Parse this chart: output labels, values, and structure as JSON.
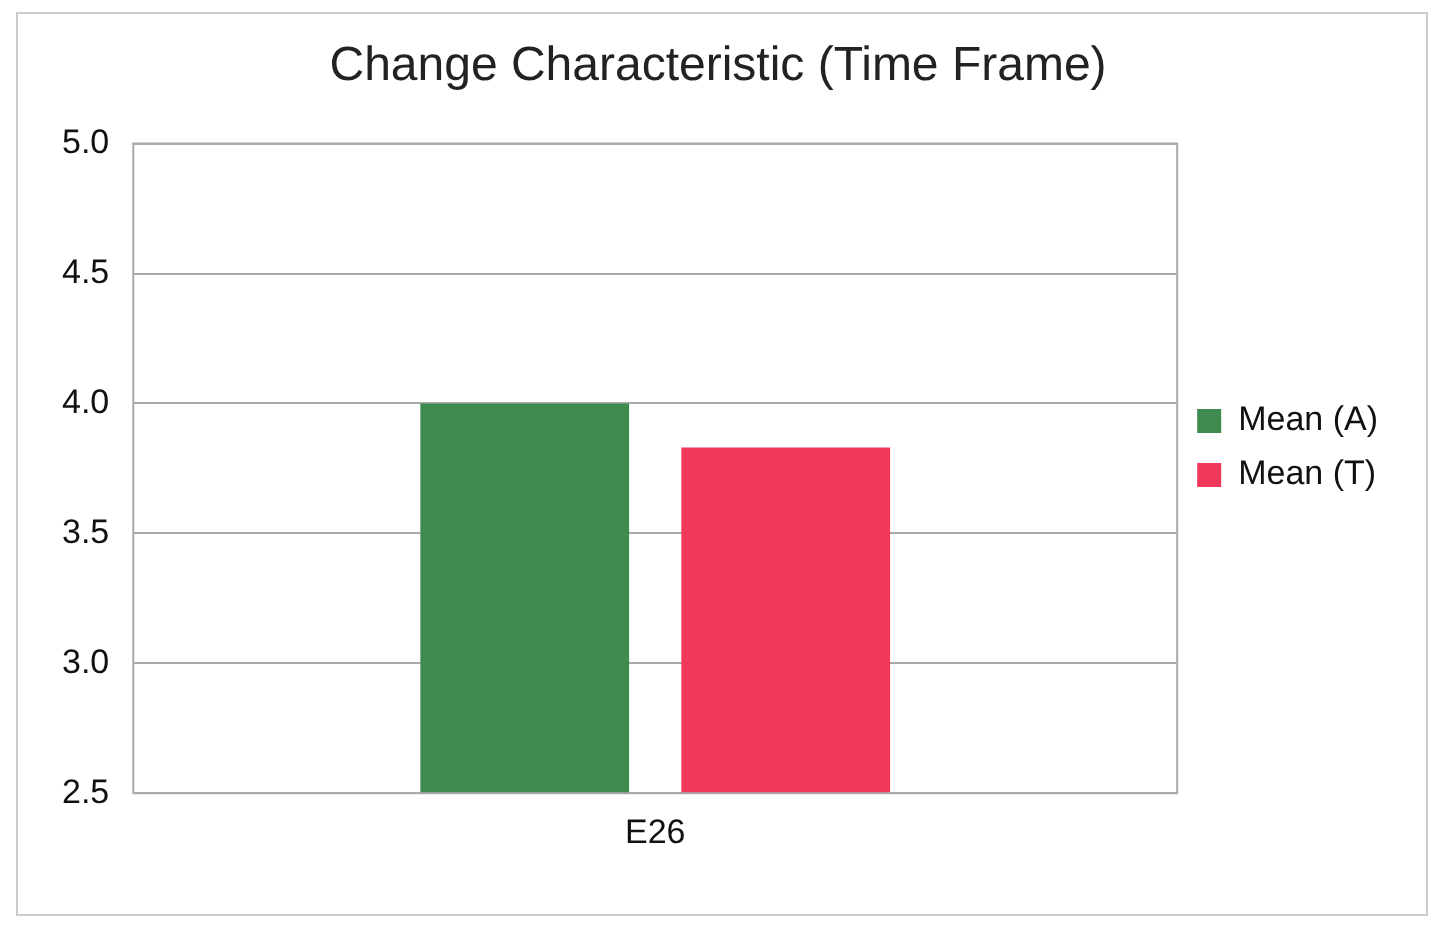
{
  "chart_data": {
    "type": "bar",
    "title": "Change Characteristic (Time Frame)",
    "categories": [
      "E26"
    ],
    "series": [
      {
        "name": "Mean (A)",
        "color": "#3f8a4f",
        "values": [
          4.0
        ]
      },
      {
        "name": "Mean (T)",
        "color": "#f0385a",
        "values": [
          3.83
        ]
      }
    ],
    "ylim": [
      2.5,
      5.0
    ],
    "yticks": [
      {
        "value": 2.5,
        "label": "2.5"
      },
      {
        "value": 3.0,
        "label": "3.0"
      },
      {
        "value": 3.5,
        "label": "3.5"
      },
      {
        "value": 4.0,
        "label": "4.0"
      },
      {
        "value": 4.5,
        "label": "4.5"
      },
      {
        "value": 5.0,
        "label": "5.0"
      }
    ],
    "grid": "y",
    "legend": "right"
  }
}
